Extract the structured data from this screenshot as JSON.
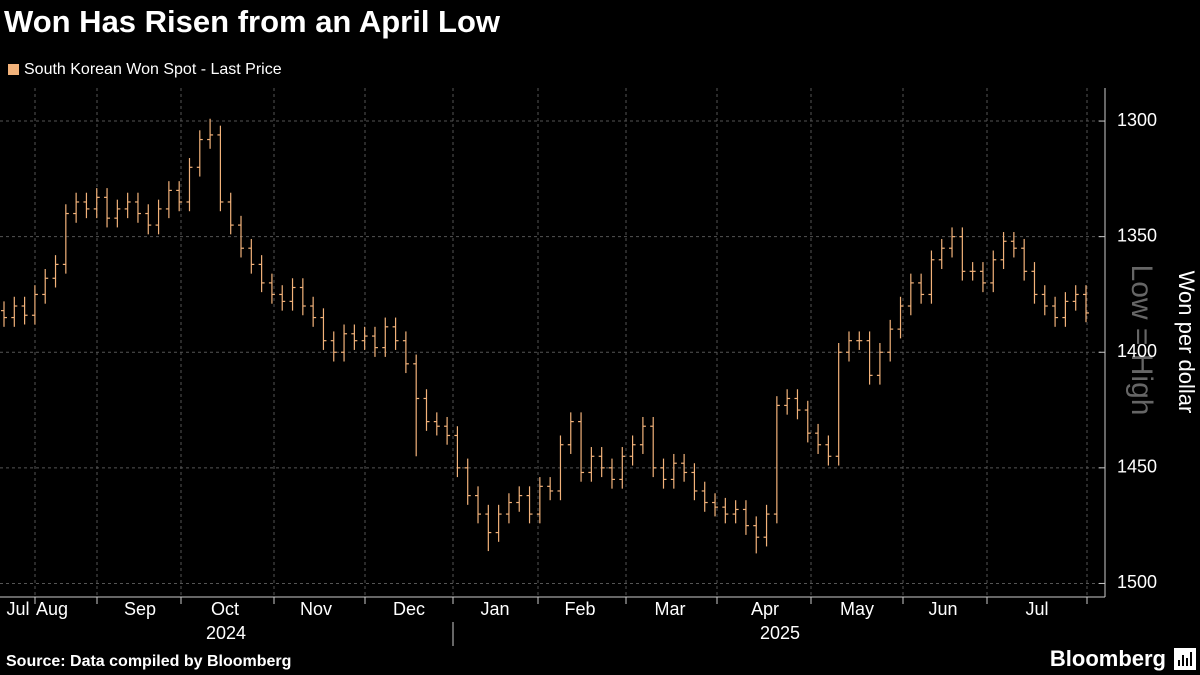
{
  "chart_data": {
    "type": "ohlc",
    "title": "Won Has Risen from an April Low",
    "series_name": "South Korean Won Spot - Last Price",
    "color": "#f2b27a",
    "y_label": "Won per dollar",
    "annotation": "Low = High",
    "source": "Source: Data compiled by Bloomberg",
    "brand": "Bloomberg",
    "x_labels": [
      "Jul",
      "Aug",
      "Sep",
      "Oct",
      "Nov",
      "Dec",
      "Jan",
      "Feb",
      "Mar",
      "Apr",
      "May",
      "Jun",
      "Jul"
    ],
    "years": [
      "2024",
      "2025"
    ],
    "ylim": [
      1287,
      1505
    ],
    "inverted": true,
    "yticks": [
      1300,
      1350,
      1400,
      1450,
      1500
    ],
    "grid": true,
    "open": [
      1382,
      1385,
      1380,
      1384,
      1375,
      1368,
      1362,
      1340,
      1335,
      1338,
      1333,
      1342,
      1338,
      1335,
      1340,
      1345,
      1338,
      1330,
      1335,
      1320,
      1308,
      1306,
      1335,
      1345,
      1355,
      1362,
      1370,
      1375,
      1378,
      1372,
      1380,
      1385,
      1395,
      1400,
      1392,
      1395,
      1393,
      1398,
      1389,
      1395,
      1405,
      1420,
      1430,
      1432,
      1436,
      1450,
      1462,
      1470,
      1478,
      1470,
      1465,
      1462,
      1470,
      1458,
      1460,
      1440,
      1430,
      1452,
      1445,
      1450,
      1455,
      1445,
      1440,
      1432,
      1450,
      1455,
      1448,
      1452,
      1460,
      1465,
      1467,
      1470,
      1468,
      1475,
      1480,
      1470,
      1423,
      1420,
      1425,
      1435,
      1440,
      1445,
      1400,
      1395,
      1395,
      1410,
      1400,
      1390,
      1380,
      1370,
      1375,
      1360,
      1355,
      1350,
      1365,
      1365,
      1370,
      1360,
      1352,
      1355,
      1365,
      1375,
      1380,
      1385,
      1378,
      1375
    ],
    "high": [
      1389,
      1389,
      1388,
      1388,
      1379,
      1372,
      1366,
      1344,
      1342,
      1342,
      1346,
      1346,
      1342,
      1344,
      1349,
      1349,
      1342,
      1339,
      1339,
      1324,
      1312,
      1339,
      1349,
      1359,
      1366,
      1374,
      1379,
      1382,
      1382,
      1384,
      1389,
      1399,
      1404,
      1404,
      1399,
      1399,
      1402,
      1402,
      1399,
      1409,
      1445,
      1434,
      1436,
      1440,
      1454,
      1466,
      1474,
      1486,
      1482,
      1474,
      1469,
      1474,
      1474,
      1464,
      1464,
      1444,
      1456,
      1456,
      1454,
      1459,
      1459,
      1449,
      1444,
      1454,
      1459,
      1459,
      1456,
      1464,
      1469,
      1471,
      1474,
      1474,
      1479,
      1487,
      1484,
      1474,
      1427,
      1429,
      1439,
      1444,
      1449,
      1449,
      1404,
      1399,
      1414,
      1414,
      1404,
      1394,
      1384,
      1379,
      1379,
      1364,
      1359,
      1369,
      1369,
      1374,
      1374,
      1364,
      1359,
      1369,
      1379,
      1384,
      1389,
      1389,
      1382,
      1387
    ],
    "low": [
      1378,
      1376,
      1376,
      1371,
      1364,
      1358,
      1336,
      1331,
      1331,
      1329,
      1329,
      1334,
      1331,
      1331,
      1336,
      1334,
      1326,
      1326,
      1316,
      1304,
      1299,
      1302,
      1331,
      1341,
      1351,
      1358,
      1366,
      1371,
      1368,
      1368,
      1376,
      1381,
      1391,
      1388,
      1388,
      1389,
      1389,
      1385,
      1385,
      1391,
      1401,
      1416,
      1426,
      1428,
      1432,
      1446,
      1458,
      1466,
      1466,
      1461,
      1458,
      1458,
      1454,
      1454,
      1436,
      1426,
      1426,
      1441,
      1441,
      1446,
      1441,
      1436,
      1428,
      1428,
      1446,
      1444,
      1444,
      1448,
      1456,
      1461,
      1463,
      1464,
      1464,
      1471,
      1466,
      1419,
      1416,
      1416,
      1421,
      1431,
      1436,
      1396,
      1391,
      1391,
      1391,
      1396,
      1386,
      1376,
      1366,
      1366,
      1356,
      1351,
      1346,
      1346,
      1361,
      1361,
      1356,
      1348,
      1348,
      1351,
      1361,
      1371,
      1376,
      1374,
      1371,
      1371
    ],
    "close": [
      1385,
      1380,
      1384,
      1375,
      1368,
      1362,
      1340,
      1335,
      1338,
      1333,
      1342,
      1338,
      1335,
      1340,
      1345,
      1338,
      1330,
      1335,
      1320,
      1308,
      1306,
      1335,
      1345,
      1355,
      1362,
      1370,
      1375,
      1378,
      1372,
      1380,
      1385,
      1395,
      1400,
      1392,
      1395,
      1393,
      1398,
      1389,
      1395,
      1405,
      1420,
      1430,
      1432,
      1436,
      1450,
      1462,
      1470,
      1478,
      1470,
      1465,
      1462,
      1470,
      1458,
      1460,
      1440,
      1430,
      1452,
      1445,
      1450,
      1455,
      1445,
      1440,
      1432,
      1450,
      1455,
      1448,
      1452,
      1460,
      1465,
      1467,
      1470,
      1468,
      1475,
      1480,
      1470,
      1423,
      1420,
      1425,
      1435,
      1440,
      1445,
      1400,
      1395,
      1395,
      1410,
      1400,
      1390,
      1380,
      1370,
      1375,
      1360,
      1355,
      1350,
      1365,
      1365,
      1370,
      1360,
      1352,
      1355,
      1365,
      1375,
      1380,
      1385,
      1378,
      1375,
      1383
    ]
  }
}
